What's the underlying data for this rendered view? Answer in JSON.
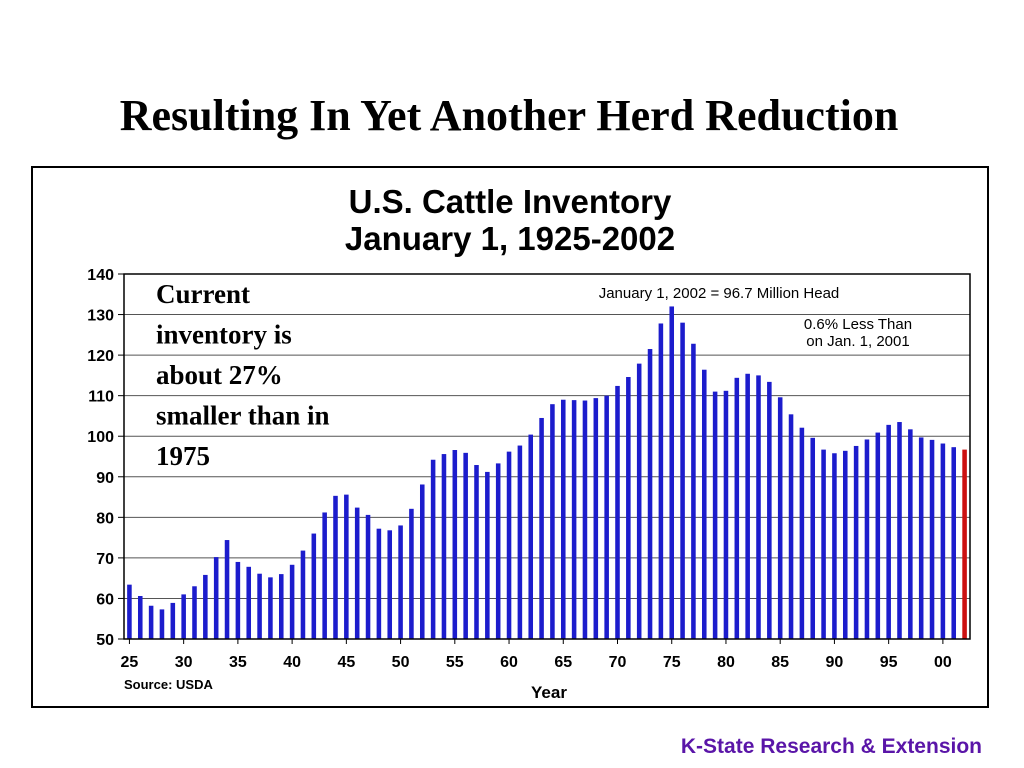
{
  "slide": {
    "title": "Resulting In Yet Another Herd Reduction",
    "footer": "K-State Research & Extension"
  },
  "colors": {
    "bar": "#1c1ccc",
    "highlight_bar": "#cc1111",
    "footer": "#5a15a8"
  },
  "chart_data": {
    "type": "bar",
    "title_lines": [
      "U.S. Cattle Inventory",
      "January 1, 1925-2002"
    ],
    "xlabel": "Year",
    "ylabel": "",
    "ylim": [
      50,
      140
    ],
    "yticks": [
      50,
      60,
      70,
      80,
      90,
      100,
      110,
      120,
      130,
      140
    ],
    "x_start": 1925,
    "x_end": 2002,
    "xtick_labels": [
      "25",
      "30",
      "35",
      "40",
      "45",
      "50",
      "55",
      "60",
      "65",
      "70",
      "75",
      "80",
      "85",
      "90",
      "95",
      "00"
    ],
    "xtick_years": [
      1925,
      1930,
      1935,
      1940,
      1945,
      1950,
      1955,
      1960,
      1965,
      1970,
      1975,
      1980,
      1985,
      1990,
      1995,
      2000
    ],
    "highlight_year": 2002,
    "grid": "horizontal",
    "values": [
      63.4,
      60.6,
      58.2,
      57.3,
      58.9,
      61.0,
      63.0,
      65.8,
      70.2,
      74.4,
      69.0,
      67.8,
      66.1,
      65.2,
      66.0,
      68.3,
      71.8,
      76.0,
      81.2,
      85.3,
      85.6,
      82.4,
      80.6,
      77.2,
      76.8,
      78.0,
      82.1,
      88.1,
      94.2,
      95.6,
      96.6,
      95.9,
      92.9,
      91.2,
      93.3,
      96.2,
      97.7,
      100.4,
      104.5,
      107.9,
      109.0,
      108.9,
      108.8,
      109.4,
      110.0,
      112.4,
      114.6,
      117.9,
      121.5,
      127.8,
      132.0,
      128.0,
      122.8,
      116.4,
      111.0,
      111.2,
      114.4,
      115.4,
      115.0,
      113.4,
      109.6,
      105.4,
      102.1,
      99.6,
      96.7,
      95.8,
      96.4,
      97.6,
      99.2,
      100.9,
      102.8,
      103.5,
      101.7,
      99.7,
      99.1,
      98.2,
      97.3,
      96.7
    ],
    "annotations": [
      {
        "id": "current",
        "lines": [
          "January 1, 2002 = 96.7 Million Head"
        ]
      },
      {
        "id": "change",
        "lines": [
          "0.6% Less Than",
          "on  Jan. 1, 2001"
        ]
      },
      {
        "id": "comment",
        "lines": [
          "Current",
          "inventory is",
          "about 27%",
          "smaller than in",
          "1975"
        ]
      }
    ],
    "source": "Source:  USDA"
  }
}
